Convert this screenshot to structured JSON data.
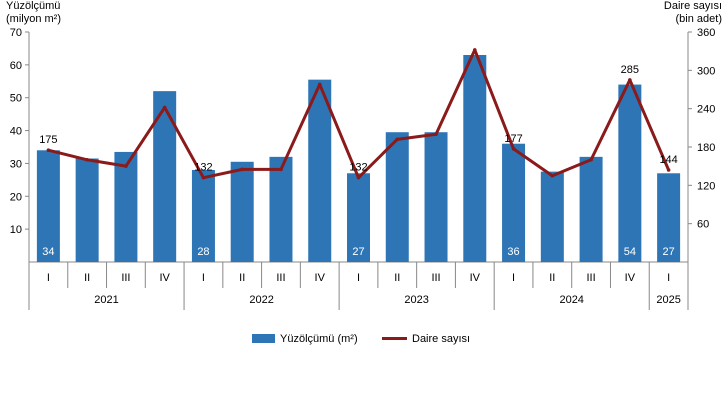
{
  "chart_data": {
    "type": "bar",
    "left_axis": {
      "title_line1": "Yüzölçümü",
      "title_line2": "(milyon m²)",
      "ylim": [
        0,
        70
      ],
      "ticks": [
        "10",
        "20",
        "30",
        "40",
        "50",
        "60",
        "70"
      ]
    },
    "right_axis": {
      "title_line1": "Daire sayısı",
      "title_line2": "(bin adet)",
      "ylim": [
        0,
        360
      ],
      "ticks": [
        "60",
        "120",
        "180",
        "240",
        "300",
        "360"
      ]
    },
    "categories": [
      "I",
      "II",
      "III",
      "IV",
      "I",
      "II",
      "III",
      "IV",
      "I",
      "II",
      "III",
      "IV",
      "I",
      "II",
      "III",
      "IV",
      "I"
    ],
    "years": [
      "2021",
      "2022",
      "2023",
      "2024",
      "2025"
    ],
    "series": [
      {
        "name": "Yüzölçümü (m²)",
        "type": "bar",
        "axis": "left",
        "color": "#2e75b6",
        "values": [
          34,
          31.5,
          33.5,
          52,
          28,
          30.5,
          32,
          55.5,
          27,
          39.5,
          39.5,
          63,
          36,
          27.5,
          32,
          54,
          27
        ],
        "labels": [
          "34",
          "",
          "",
          "",
          "28",
          "",
          "",
          "",
          "27",
          "",
          "",
          "",
          "36",
          "",
          "",
          "54",
          "27"
        ]
      },
      {
        "name": "Daire sayısı",
        "type": "line",
        "axis": "right",
        "color": "#8b1a1a",
        "values": [
          175,
          160,
          150,
          242,
          132,
          145,
          145,
          278,
          132,
          192,
          200,
          332,
          177,
          135,
          160,
          285,
          144
        ],
        "labels": [
          "175",
          "",
          "",
          "",
          "132",
          "",
          "",
          "",
          "132",
          "",
          "",
          "",
          "177",
          "",
          "",
          "285",
          "144"
        ]
      }
    ],
    "grid": false,
    "legend": "bottom-center"
  }
}
